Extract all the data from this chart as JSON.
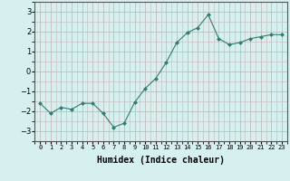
{
  "x": [
    0,
    1,
    2,
    3,
    4,
    5,
    6,
    7,
    8,
    9,
    10,
    11,
    12,
    13,
    14,
    15,
    16,
    17,
    18,
    19,
    20,
    21,
    22,
    23
  ],
  "y": [
    -1.6,
    -2.1,
    -1.8,
    -1.9,
    -1.6,
    -1.6,
    -2.1,
    -2.8,
    -2.6,
    -1.55,
    -0.85,
    -0.35,
    0.45,
    1.45,
    1.95,
    2.2,
    2.85,
    1.65,
    1.35,
    1.45,
    1.65,
    1.75,
    1.85,
    1.85
  ],
  "line_color": "#2e7d70",
  "marker": "D",
  "marker_size": 2.0,
  "bg_color": "#d6f0f0",
  "grid_major_color": "#c8b8b8",
  "grid_minor_color": "#c8b8b8",
  "xlabel": "Humidex (Indice chaleur)",
  "ylim": [
    -3.5,
    3.5
  ],
  "xlim": [
    -0.5,
    23.5
  ],
  "yticks": [
    -3,
    -2,
    -1,
    0,
    1,
    2,
    3
  ],
  "xtick_labels": [
    "0",
    "1",
    "2",
    "3",
    "4",
    "5",
    "6",
    "7",
    "8",
    "9",
    "10",
    "11",
    "12",
    "13",
    "14",
    "15",
    "16",
    "17",
    "18",
    "19",
    "20",
    "21",
    "22",
    "23"
  ],
  "xlabel_fontsize": 7,
  "ytick_fontsize": 6,
  "xtick_fontsize": 5
}
